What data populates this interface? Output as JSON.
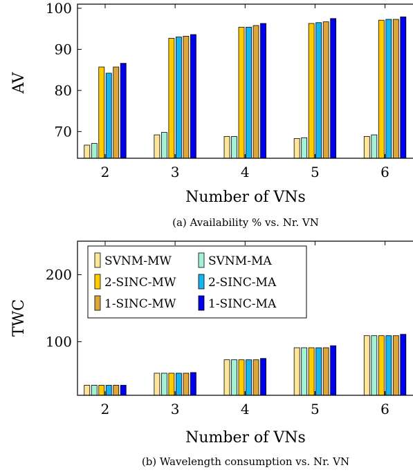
{
  "colors": {
    "SVNM-MW": "#fde59a",
    "SVNM-MA": "#a4f0d2",
    "2-SINC-MW": "#ffcc00",
    "2-SINC-MA": "#17b4ee",
    "1-SINC-MW": "#dca63a",
    "1-SINC-MA": "#0000ee"
  },
  "chart_data": [
    {
      "type": "bar",
      "caption": "(a) Availability % vs. Nr. VN",
      "xlabel": "Number of VNs",
      "ylabel": "AV",
      "categories": [
        "2",
        "3",
        "4",
        "5",
        "6"
      ],
      "ylim": [
        63.5,
        101
      ],
      "yticks": [
        70,
        80,
        90,
        100
      ],
      "grid": false,
      "legend": false,
      "series": [
        {
          "name": "SVNM-MW",
          "values": [
            66.7,
            69.2,
            68.8,
            68.3,
            68.8
          ]
        },
        {
          "name": "SVNM-MA",
          "values": [
            67.1,
            69.8,
            68.8,
            68.5,
            69.2
          ]
        },
        {
          "name": "2-SINC-MW",
          "values": [
            85.7,
            92.7,
            95.4,
            96.3,
            97.1
          ]
        },
        {
          "name": "2-SINC-MA",
          "values": [
            84.2,
            93.0,
            95.4,
            96.5,
            97.3
          ]
        },
        {
          "name": "1-SINC-MW",
          "values": [
            85.7,
            93.2,
            95.8,
            96.7,
            97.3
          ]
        },
        {
          "name": "1-SINC-MA",
          "values": [
            86.6,
            93.6,
            96.3,
            97.5,
            97.9
          ]
        }
      ]
    },
    {
      "type": "bar",
      "caption": "(b) Wavelength consumption vs. Nr. VN",
      "xlabel": "Number of VNs",
      "ylabel": "TWC",
      "categories": [
        "2",
        "3",
        "4",
        "5",
        "6"
      ],
      "ylim": [
        20,
        250
      ],
      "yticks": [
        100,
        200
      ],
      "grid": false,
      "legend": "top-left",
      "series": [
        {
          "name": "SVNM-MW",
          "values": [
            35,
            53,
            73,
            91,
            109
          ]
        },
        {
          "name": "SVNM-MA",
          "values": [
            35,
            53,
            73,
            91,
            109
          ]
        },
        {
          "name": "2-SINC-MW",
          "values": [
            35,
            53,
            73,
            91,
            109
          ]
        },
        {
          "name": "2-SINC-MA",
          "values": [
            35,
            53,
            73,
            91,
            109
          ]
        },
        {
          "name": "1-SINC-MW",
          "values": [
            35,
            53,
            73,
            91,
            109
          ]
        },
        {
          "name": "1-SINC-MA",
          "values": [
            35,
            54,
            75,
            94,
            111
          ]
        }
      ]
    }
  ]
}
